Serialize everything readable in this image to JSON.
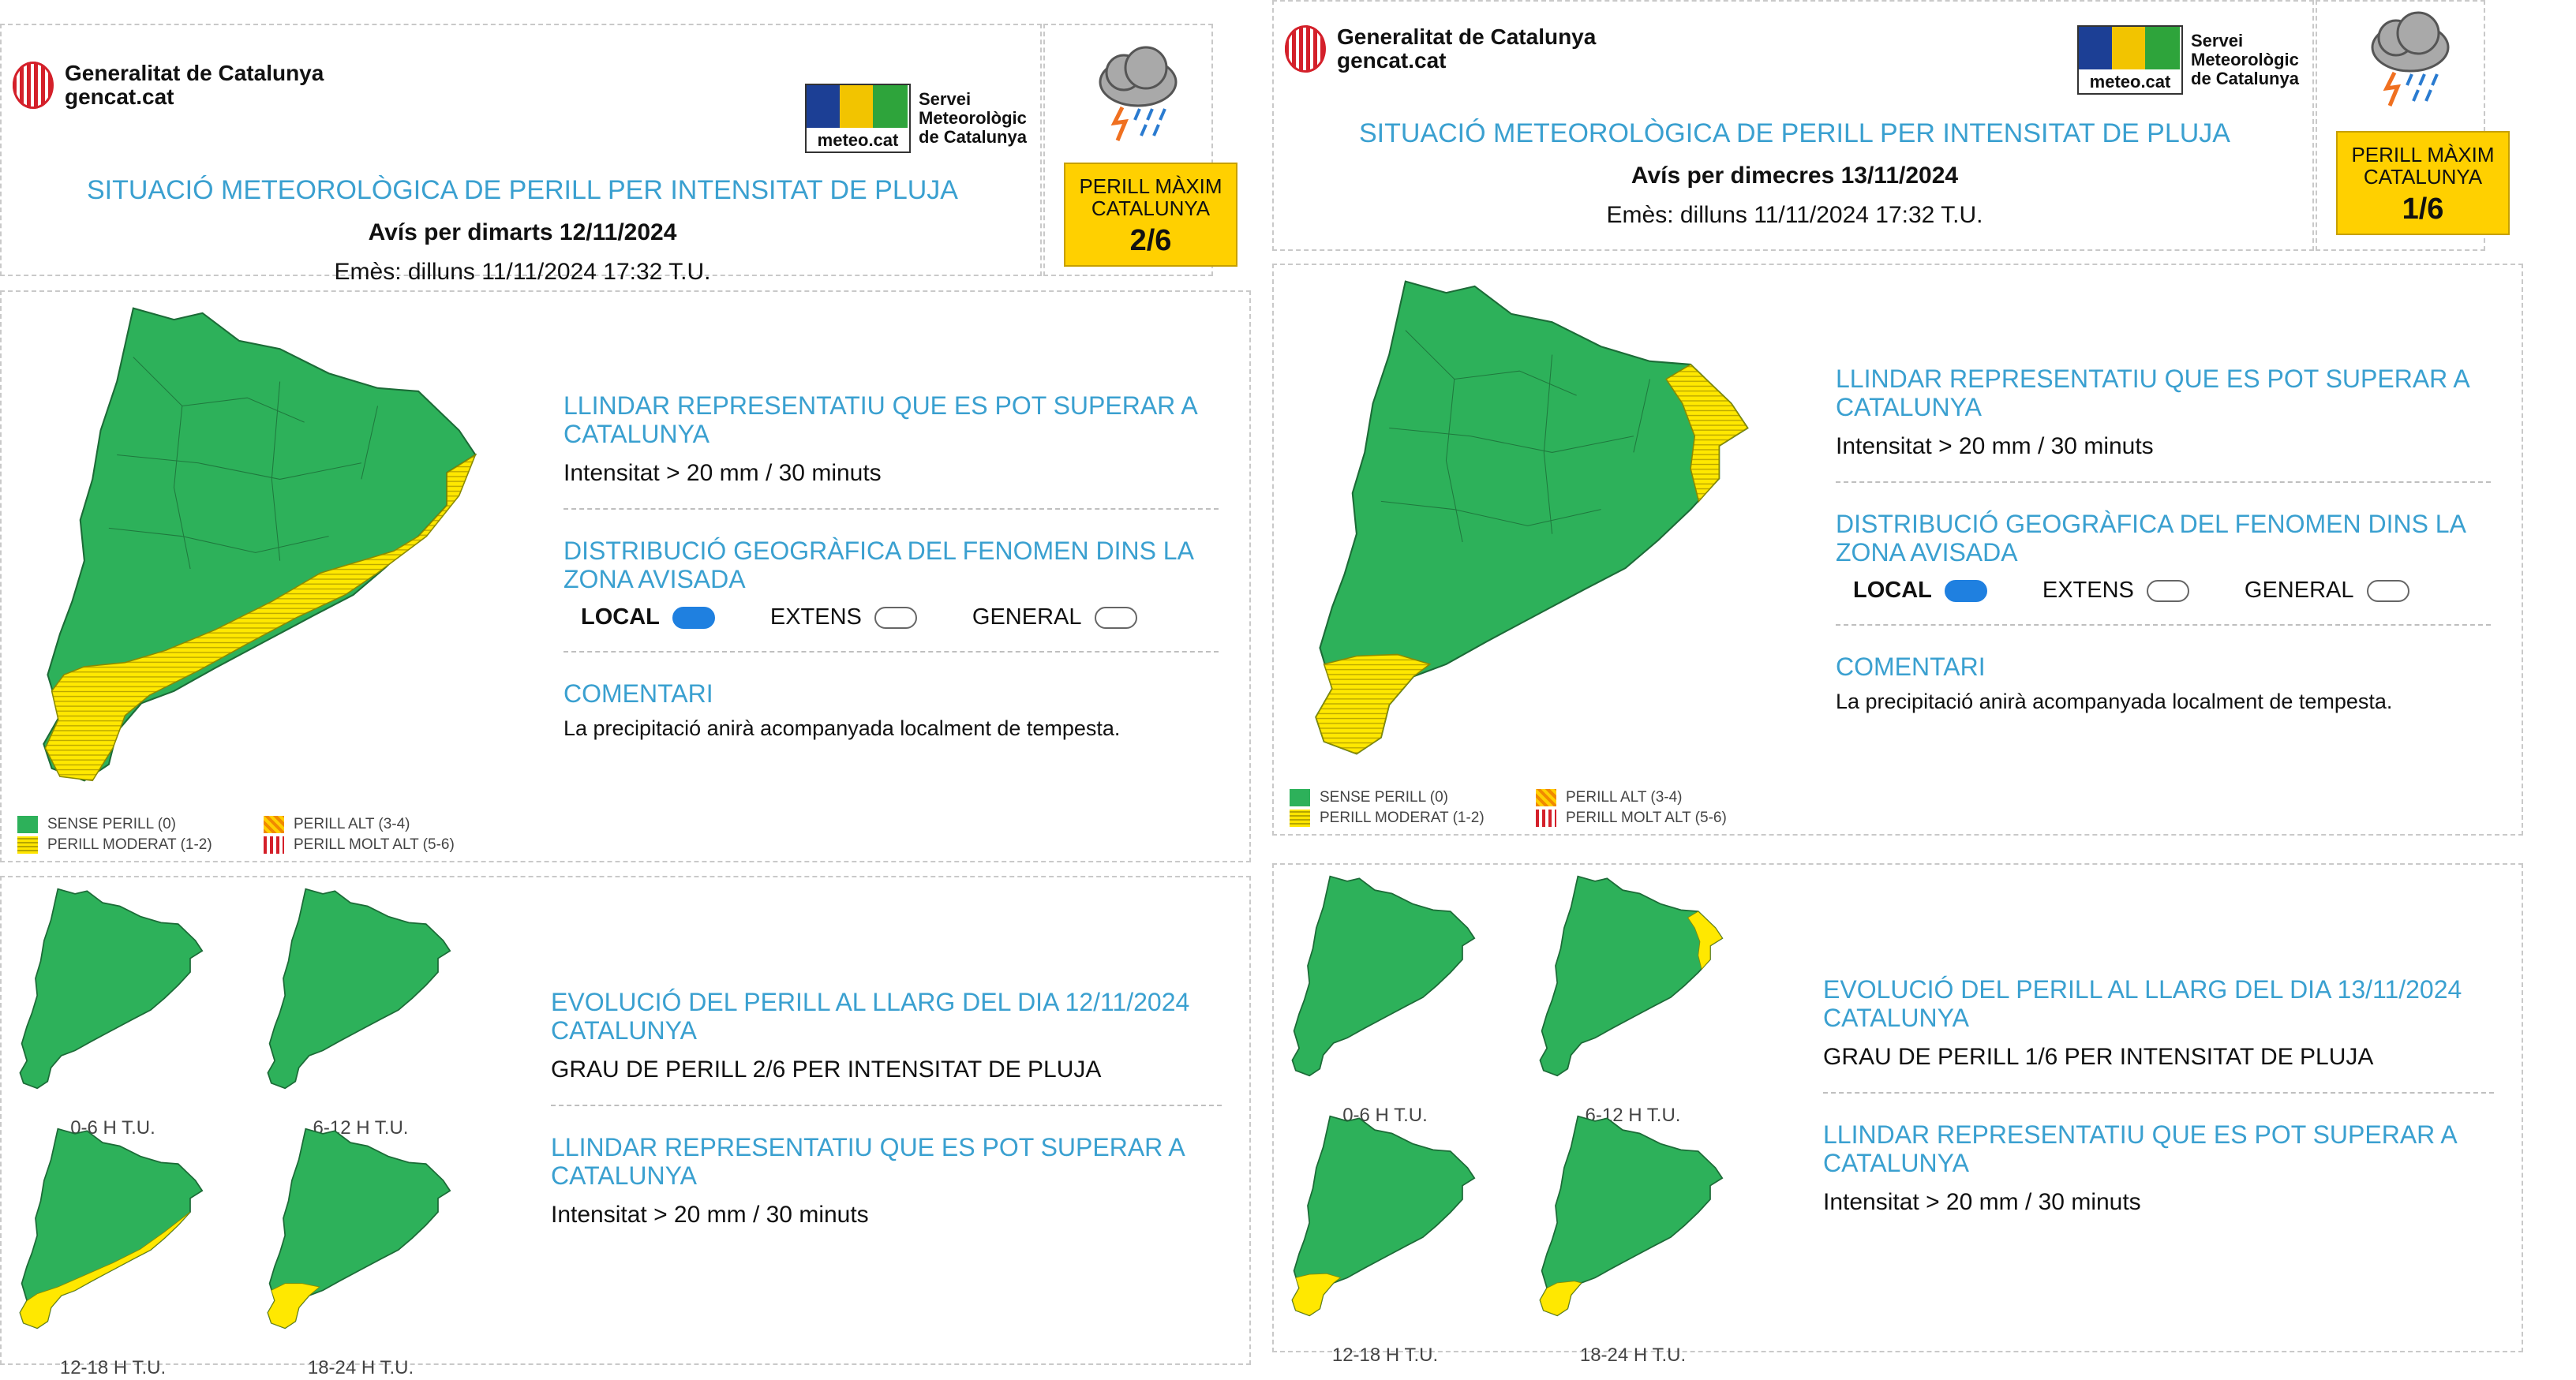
{
  "colors": {
    "green": "#2db15a",
    "yellow": "#ffe500",
    "title_blue": "#3aa0d0",
    "badge_yellow": "#ffd000"
  },
  "brand": {
    "line1": "Generalitat de Catalunya",
    "line2": "gencat.cat"
  },
  "smc": {
    "logo_text": "meteo.cat",
    "line1": "Servei",
    "line2": "Meteorològic",
    "line3": "de Catalunya"
  },
  "legend": {
    "sense": "SENSE PERILL (0)",
    "moderat": "PERILL MODERAT (1-2)",
    "alt": "PERILL ALT (3-4)",
    "molt_alt": "PERILL MOLT ALT (5-6)"
  },
  "panels": [
    {
      "title": "SITUACIÓ METEOROLÒGICA DE PERILL PER INTENSITAT DE PLUJA",
      "subtitle": "Avís per dimarts 12/11/2024",
      "issued": "Emès: dilluns 11/11/2024 17:32 T.U.",
      "max_label_1": "PERILL MÀXIM",
      "max_label_2": "CATALUNYA",
      "max_value": "2/6",
      "llindar_title": "LLINDAR REPRESENTATIU QUE ES POT SUPERAR A CATALUNYA",
      "llindar_value": "Intensitat > 20 mm / 30 minuts",
      "dist_title": "DISTRIBUCIÓ GEOGRÀFICA DEL FENOMEN DINS LA ZONA AVISADA",
      "dist_local": "LOCAL",
      "dist_extens": "EXTENS",
      "dist_general": "GENERAL",
      "comment_title": "COMENTARI",
      "comment_text": "La precipitació anirà acompanyada localment de tempesta.",
      "evo_title": "EVOLUCIÓ DEL PERILL AL LLARG DEL DIA 12/11/2024 CATALUNYA",
      "evo_grade": "GRAU DE PERILL 2/6 PER INTENSITAT DE PLUJA",
      "evo_llindar_title": "LLINDAR REPRESENTATIU QUE ES POT SUPERAR A CATALUNYA",
      "evo_llindar_value": "Intensitat > 20 mm / 30 minuts",
      "slots": [
        "0-6 H T.U.",
        "6-12 H T.U.",
        "12-18 H T.U.",
        "18-24 H T.U."
      ]
    },
    {
      "title": "SITUACIÓ METEOROLÒGICA DE PERILL PER INTENSITAT DE PLUJA",
      "subtitle": "Avís per dimecres 13/11/2024",
      "issued": "Emès: dilluns 11/11/2024 17:32 T.U.",
      "max_label_1": "PERILL MÀXIM",
      "max_label_2": "CATALUNYA",
      "max_value": "1/6",
      "llindar_title": "LLINDAR REPRESENTATIU QUE ES POT SUPERAR A CATALUNYA",
      "llindar_value": "Intensitat > 20 mm / 30 minuts",
      "dist_title": "DISTRIBUCIÓ GEOGRÀFICA DEL FENOMEN DINS LA ZONA AVISADA",
      "dist_local": "LOCAL",
      "dist_extens": "EXTENS",
      "dist_general": "GENERAL",
      "comment_title": "COMENTARI",
      "comment_text": "La precipitació anirà acompanyada localment de tempesta.",
      "evo_title": "EVOLUCIÓ DEL PERILL AL LLARG DEL DIA 13/11/2024 CATALUNYA",
      "evo_grade": "GRAU DE PERILL 1/6 PER INTENSITAT DE PLUJA",
      "evo_llindar_title": "LLINDAR REPRESENTATIU QUE ES POT SUPERAR A CATALUNYA",
      "evo_llindar_value": "Intensitat > 20 mm / 30 minuts",
      "slots": [
        "0-6 H T.U.",
        "6-12 H T.U.",
        "12-18 H T.U.",
        "18-24 H T.U."
      ]
    }
  ]
}
